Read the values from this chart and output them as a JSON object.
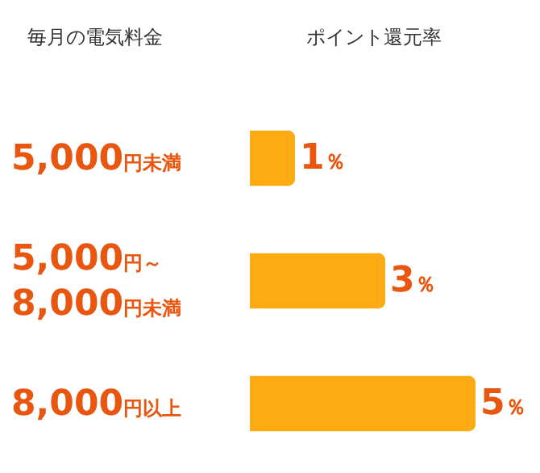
{
  "chart_data": {
    "type": "bar",
    "orientation": "horizontal",
    "ylabel": "毎月の電気料金",
    "xlabel": "ポイント還元率",
    "categories": [
      "5,000円未満",
      "5,000円～\n8,000円未満",
      "8,000円以上"
    ],
    "values": [
      1,
      3,
      5
    ],
    "color": "#fcac12",
    "value_labels": [
      "1％",
      "3％",
      "5％"
    ],
    "legend": false
  }
}
